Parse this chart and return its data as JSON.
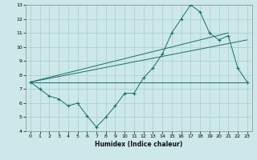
{
  "title": "",
  "xlabel": "Humidex (Indice chaleur)",
  "ylabel": "",
  "bg_color": "#cce8e8",
  "grid_color": "#aacccc",
  "line_color": "#1a6e6e",
  "xlim": [
    -0.5,
    23.5
  ],
  "ylim": [
    4,
    13
  ],
  "xticks": [
    0,
    1,
    2,
    3,
    4,
    5,
    6,
    7,
    8,
    9,
    10,
    11,
    12,
    13,
    14,
    15,
    16,
    17,
    18,
    19,
    20,
    21,
    22,
    23
  ],
  "yticks": [
    4,
    5,
    6,
    7,
    8,
    9,
    10,
    11,
    12,
    13
  ],
  "series1_x": [
    0,
    1,
    2,
    3,
    4,
    5,
    6,
    7,
    8,
    9,
    10,
    11,
    12,
    13,
    14,
    15,
    16,
    17,
    18,
    19,
    20,
    21,
    22,
    23
  ],
  "series1_y": [
    7.5,
    7.0,
    6.5,
    6.3,
    5.8,
    6.0,
    5.1,
    4.3,
    5.0,
    5.8,
    6.7,
    6.7,
    7.8,
    8.5,
    9.5,
    11.0,
    12.0,
    13.0,
    12.5,
    11.0,
    10.5,
    10.8,
    8.5,
    7.5
  ],
  "series2_x": [
    0,
    23
  ],
  "series2_y": [
    7.5,
    7.5
  ],
  "series3_x": [
    0,
    21
  ],
  "series3_y": [
    7.5,
    11.0
  ],
  "series4_x": [
    0,
    23
  ],
  "series4_y": [
    7.5,
    10.5
  ]
}
